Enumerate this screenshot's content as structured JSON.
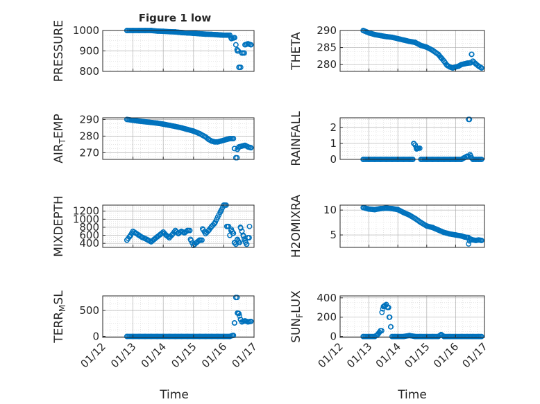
{
  "figure": {
    "title": "Figure 1 low",
    "background": "#ffffff",
    "marker_color": "#0072BD",
    "axis_color": "#262626",
    "grid_color": "#b0b0b0"
  },
  "chart_data": [
    {
      "type": "scatter",
      "ylabel": "PRESSURE",
      "ylim": [
        800,
        1000
      ],
      "yticks": [
        "800",
        "900",
        "1000"
      ],
      "ytick_values": [
        800,
        900,
        1000
      ],
      "xlim": [
        0,
        5
      ],
      "grid": true,
      "series": [
        {
          "x": [
            0.8,
            1.0,
            1.2,
            1.4,
            1.6,
            1.8,
            2.0,
            2.2,
            2.4,
            2.6,
            2.8,
            3.0,
            3.2,
            3.4,
            3.6,
            3.8,
            3.9,
            4.0,
            4.1,
            4.2,
            4.25,
            4.35,
            4.4,
            4.45,
            4.5,
            4.6,
            4.7,
            4.8,
            4.9
          ],
          "y": [
            1005,
            1003,
            1002,
            1001,
            1000,
            997,
            996,
            994,
            993,
            990,
            988,
            986,
            984,
            982,
            981,
            979,
            978,
            977,
            977,
            977,
            960,
            965,
            930,
            900,
            820,
            890,
            930,
            935,
            930
          ]
        }
      ]
    },
    {
      "type": "scatter",
      "ylabel": "THETA",
      "ylim": [
        278,
        290
      ],
      "yticks": [
        "280",
        "285",
        "290"
      ],
      "ytick_values": [
        280,
        285,
        290
      ],
      "xlim": [
        0,
        5
      ],
      "grid": true,
      "series": [
        {
          "x": [
            0.8,
            1.0,
            1.2,
            1.4,
            1.6,
            1.8,
            2.0,
            2.2,
            2.4,
            2.6,
            2.8,
            3.0,
            3.2,
            3.4,
            3.5,
            3.6,
            3.7,
            3.8,
            3.9,
            4.0,
            4.1,
            4.2,
            4.3,
            4.4,
            4.5,
            4.55,
            4.6,
            4.7,
            4.8,
            4.9
          ],
          "y": [
            290,
            289.3,
            288.8,
            288.5,
            288.2,
            288,
            287.6,
            287.2,
            286.8,
            286.5,
            285.6,
            285.1,
            284.2,
            283,
            282,
            281,
            279.8,
            279.3,
            279,
            279.3,
            279.5,
            280,
            280.2,
            280.4,
            280.5,
            283,
            281,
            280.2,
            279.5,
            279
          ]
        }
      ]
    },
    {
      "type": "scatter",
      "ylabel": "AIR_TEMP",
      "ylim": [
        266,
        291
      ],
      "yticks": [
        "270",
        "280",
        "290"
      ],
      "ytick_values": [
        270,
        280,
        290
      ],
      "xlim": [
        0,
        5
      ],
      "grid": true,
      "series": [
        {
          "x": [
            0.8,
            1.0,
            1.2,
            1.4,
            1.6,
            1.8,
            2.0,
            2.2,
            2.4,
            2.6,
            2.8,
            3.0,
            3.2,
            3.4,
            3.5,
            3.6,
            3.7,
            3.8,
            3.9,
            4.0,
            4.1,
            4.2,
            4.35,
            4.4,
            4.45,
            4.5,
            4.6,
            4.7,
            4.8,
            4.9
          ],
          "y": [
            290,
            289.5,
            289,
            288.6,
            288.2,
            287.8,
            287.2,
            286.5,
            285.8,
            285,
            284,
            283,
            281.5,
            279.5,
            278,
            277,
            276.5,
            276.5,
            277,
            277.5,
            278,
            278.5,
            272.5,
            267,
            272,
            273.5,
            274,
            274.5,
            273.5,
            273
          ]
        }
      ]
    },
    {
      "type": "scatter",
      "ylabel": "RAINFALL",
      "ylim": [
        0,
        2.6
      ],
      "yticks": [
        "0",
        "1",
        "2"
      ],
      "ytick_values": [
        0,
        1,
        2
      ],
      "xlim": [
        0,
        5
      ],
      "grid": true,
      "series": [
        {
          "x": [
            0.8,
            1.0,
            1.2,
            1.4,
            1.6,
            1.8,
            2.0,
            2.2,
            2.4,
            2.5,
            2.55,
            2.6,
            2.65,
            2.7,
            2.8,
            3.0,
            3.2,
            3.4,
            3.6,
            3.8,
            4.0,
            4.2,
            4.3,
            4.4,
            4.45,
            4.5,
            4.55,
            4.6,
            4.7,
            4.8,
            4.9
          ],
          "y": [
            0,
            0,
            0,
            0,
            0,
            0,
            0,
            0,
            0,
            0,
            1.0,
            0.9,
            0.65,
            0.7,
            0,
            0,
            0,
            0,
            0,
            0,
            0,
            0,
            0.1,
            0.2,
            2.5,
            0.3,
            0.1,
            0,
            0,
            0,
            0
          ]
        }
      ]
    },
    {
      "type": "scatter",
      "ylabel": "MIXDEPTH",
      "ylim": [
        300,
        1350
      ],
      "yticks": [
        "400",
        "600",
        "800",
        "1000",
        "1200"
      ],
      "ytick_values": [
        400,
        600,
        800,
        1000,
        1200
      ],
      "xlim": [
        0,
        5
      ],
      "grid": true,
      "series": [
        {
          "x": [
            0.8,
            0.9,
            1.0,
            1.1,
            1.2,
            1.3,
            1.4,
            1.5,
            1.6,
            1.7,
            1.8,
            1.9,
            2.0,
            2.1,
            2.2,
            2.3,
            2.4,
            2.5,
            2.6,
            2.7,
            2.8,
            2.9,
            3.0,
            3.1,
            3.2,
            3.3,
            3.4,
            3.5,
            3.6,
            3.7,
            3.8,
            3.9,
            4.0,
            4.1,
            4.2,
            4.25,
            4.3,
            4.35,
            4.4,
            4.45,
            4.5,
            4.55,
            4.6,
            4.65,
            4.7,
            4.75,
            4.8,
            4.85
          ],
          "y": [
            480,
            580,
            700,
            650,
            600,
            550,
            520,
            480,
            440,
            500,
            560,
            620,
            680,
            600,
            540,
            620,
            720,
            640,
            700,
            660,
            720,
            500,
            350,
            420,
            480,
            760,
            640,
            720,
            820,
            900,
            1050,
            1200,
            1350,
            820,
            600,
            750,
            650,
            420,
            380,
            500,
            420,
            800,
            700,
            580,
            460,
            380,
            540,
            820
          ]
        }
      ]
    },
    {
      "type": "scatter",
      "ylabel": "H2OMIXRA",
      "ylim": [
        2.5,
        11
      ],
      "yticks": [
        "5",
        "10"
      ],
      "ytick_values": [
        5,
        10
      ],
      "xlim": [
        0,
        5
      ],
      "grid": true,
      "series": [
        {
          "x": [
            0.8,
            1.0,
            1.2,
            1.4,
            1.6,
            1.8,
            2.0,
            2.2,
            2.4,
            2.6,
            2.8,
            3.0,
            3.2,
            3.4,
            3.6,
            3.8,
            4.0,
            4.2,
            4.3,
            4.4,
            4.45,
            4.5,
            4.6,
            4.7,
            4.8,
            4.9
          ],
          "y": [
            10.5,
            10.2,
            10.1,
            10.3,
            10.4,
            10.3,
            10.1,
            9.5,
            9,
            8.3,
            7.5,
            6.8,
            6.5,
            6,
            5.5,
            5.2,
            5,
            4.8,
            4.6,
            4.5,
            3.2,
            4.2,
            4,
            3.9,
            4,
            3.9
          ]
        }
      ]
    },
    {
      "type": "scatter",
      "ylabel": "TERR_MSL",
      "ylim": [
        -20,
        780
      ],
      "yticks": [
        "0",
        "500"
      ],
      "ytick_values": [
        0,
        500
      ],
      "xlim": [
        0,
        5
      ],
      "grid": true,
      "series": [
        {
          "x": [
            0.8,
            1.0,
            1.2,
            1.4,
            1.6,
            1.8,
            2.0,
            2.2,
            2.4,
            2.6,
            2.8,
            3.0,
            3.2,
            3.4,
            3.6,
            3.8,
            4.0,
            4.2,
            4.3,
            4.35,
            4.4,
            4.45,
            4.5,
            4.55,
            4.6,
            4.7,
            4.8,
            4.9
          ],
          "y": [
            0,
            0,
            0,
            0,
            0,
            0,
            0,
            0,
            0,
            0,
            0,
            0,
            0,
            0,
            0,
            0,
            0,
            0,
            20,
            260,
            750,
            450,
            440,
            330,
            280,
            300,
            280,
            290
          ]
        }
      ]
    },
    {
      "type": "scatter",
      "ylabel": "SUN_FLUX",
      "ylim": [
        -10,
        420
      ],
      "yticks": [
        "0",
        "200",
        "400"
      ],
      "ytick_values": [
        0,
        200,
        400
      ],
      "xlim": [
        0,
        5
      ],
      "grid": true,
      "series": [
        {
          "x": [
            0.8,
            1.0,
            1.2,
            1.3,
            1.35,
            1.4,
            1.45,
            1.5,
            1.55,
            1.6,
            1.65,
            1.7,
            1.75,
            1.8,
            1.9,
            2.0,
            2.2,
            2.4,
            2.6,
            2.8,
            3.0,
            3.2,
            3.4,
            3.5,
            3.6,
            3.8,
            4.0,
            4.2,
            4.4,
            4.6,
            4.8,
            4.9
          ],
          "y": [
            0,
            0,
            0,
            20,
            40,
            60,
            250,
            310,
            320,
            330,
            300,
            200,
            100,
            0,
            0,
            0,
            0,
            10,
            0,
            0,
            0,
            0,
            0,
            20,
            0,
            0,
            0,
            0,
            0,
            0,
            0,
            0
          ]
        }
      ]
    }
  ],
  "x_axis": {
    "label": "Time",
    "ticks": [
      "01/12",
      "01/13",
      "01/14",
      "01/15",
      "01/16",
      "01/17"
    ],
    "tick_values": [
      0,
      1,
      2,
      3,
      4,
      5
    ]
  }
}
